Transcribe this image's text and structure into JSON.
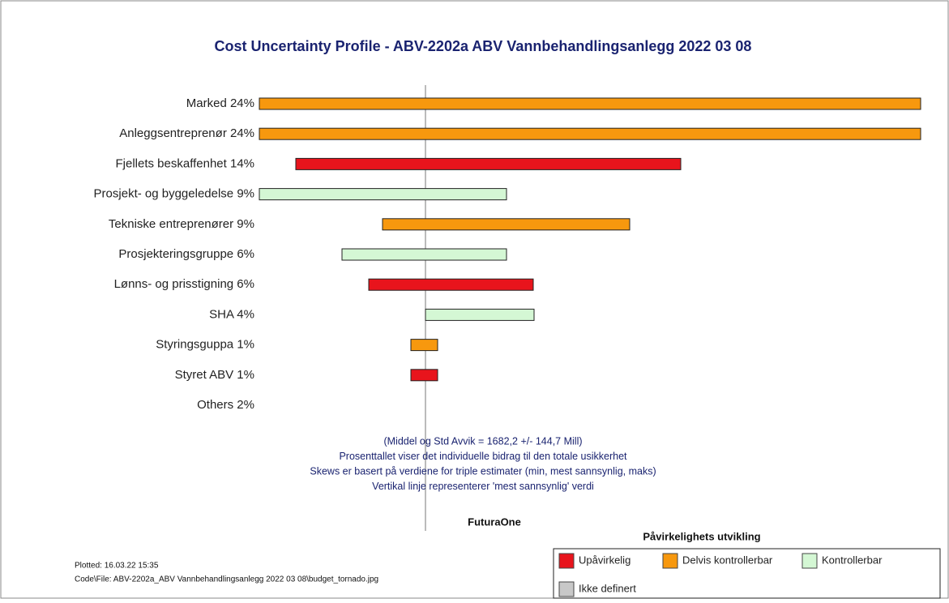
{
  "chart_data": {
    "type": "tornado",
    "title": "Cost Uncertainty Profile - ABV-2202a ABV Vannbehandlingsanlegg 2022 03 08",
    "categories": [
      "Marked 24%",
      "Anleggsentreprenør 24%",
      "Fjellets beskaffenhet 14%",
      "Prosjekt- og byggeledelse 9%",
      "Tekniske entreprenører 9%",
      "Prosjekteringsgruppe 6%",
      "Lønns- og prisstigning 6%",
      "SHA 4%",
      "Styringsguppa 1%",
      "Styret ABV 1%",
      "Others 2%"
    ],
    "low": [
      -205,
      -205,
      -160,
      -205,
      -53,
      -103,
      -70,
      0,
      -18,
      -18,
      null
    ],
    "high": [
      611,
      611,
      315,
      100,
      252,
      100,
      133,
      134,
      15,
      15,
      null
    ],
    "group": [
      1,
      1,
      0,
      2,
      1,
      2,
      0,
      2,
      1,
      0,
      null
    ],
    "xlim": [
      -205,
      611
    ],
    "notes": [
      "(Middel og Std Avvik =  1682,2   +/-  144,7 Mill)",
      "Prosenttallet viser det individuelle bidrag til den totale usikkerhet",
      "Skews er basert på verdiene for triple estimater (min, mest sannsynlig, maks)",
      "Vertikal linje representerer 'mest sannsynlig' verdi"
    ],
    "brand": "FuturaOne",
    "legend_title": "Påvirkelighets utvikling",
    "legend": [
      {
        "name": "Upåvirkelig",
        "color": "#e8141c"
      },
      {
        "name": "Delvis kontrollerbar",
        "color": "#f7980e"
      },
      {
        "name": "Kontrollerbar",
        "color": "#d4f7d4"
      },
      {
        "name": "Ikke definert",
        "color": "#c8c8c8"
      }
    ],
    "footer": [
      "Plotted: 16.03.22 15:35",
      "Code\\File: ABV-2202a_ABV Vannbehandlingsanlegg 2022 03 08\\budget_tornado.jpg"
    ]
  }
}
